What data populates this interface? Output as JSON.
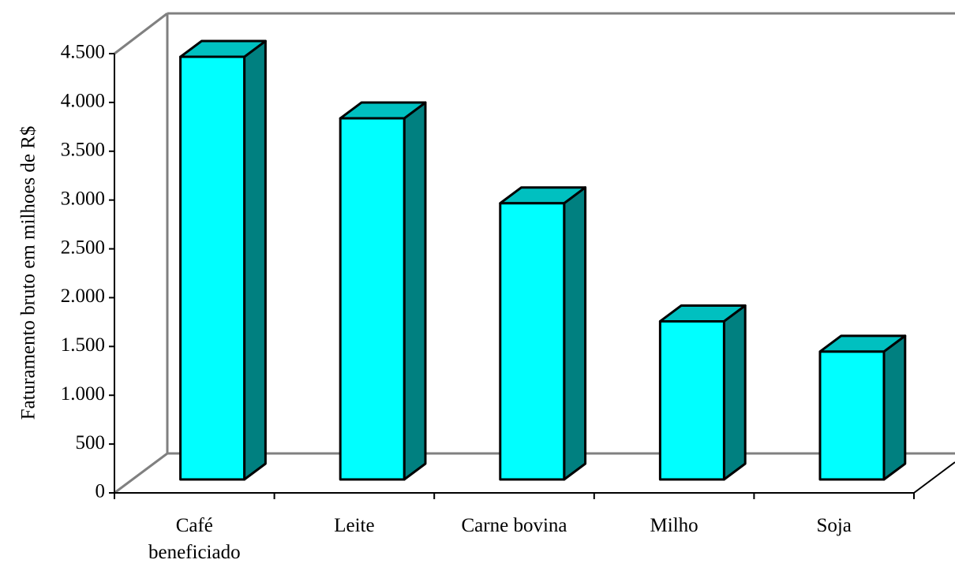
{
  "chart_data": {
    "type": "bar3d",
    "y_label": "Faturamento bruto em milhoes de R$",
    "categories": [
      "Café beneficiado",
      "Leite",
      "Carne bovina",
      "Milho",
      "Soja"
    ],
    "values": [
      4330,
      3700,
      2830,
      1620,
      1310
    ],
    "colors": {
      "front": "#00ffff",
      "top": "#00c0c0",
      "side": "#008080"
    },
    "ylim": [
      0,
      4500
    ],
    "yticks": [
      0,
      500,
      {
        "value": 1000,
        "label": "1.000"
      },
      {
        "value": 1500,
        "label": "1.500"
      },
      {
        "value": 2000,
        "label": "2.000"
      },
      {
        "value": 2500,
        "label": "2.500"
      },
      {
        "value": 3000,
        "label": "3.000"
      },
      {
        "value": 3500,
        "label": "3.500"
      },
      {
        "value": 4000,
        "label": "4.000"
      },
      {
        "value": 4500,
        "label": "4.500"
      }
    ]
  }
}
